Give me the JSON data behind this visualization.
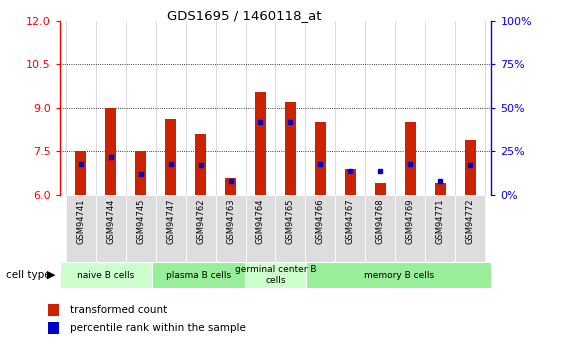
{
  "title": "GDS1695 / 1460118_at",
  "samples": [
    "GSM94741",
    "GSM94744",
    "GSM94745",
    "GSM94747",
    "GSM94762",
    "GSM94763",
    "GSM94764",
    "GSM94765",
    "GSM94766",
    "GSM94767",
    "GSM94768",
    "GSM94769",
    "GSM94771",
    "GSM94772"
  ],
  "transformed_count": [
    7.5,
    9.0,
    7.5,
    8.6,
    8.1,
    6.6,
    9.55,
    9.2,
    8.5,
    6.9,
    6.4,
    8.5,
    6.4,
    7.9
  ],
  "percentile_rank": [
    18,
    22,
    12,
    18,
    17,
    8,
    42,
    42,
    18,
    14,
    14,
    18,
    8,
    17
  ],
  "ymin": 6,
  "ymax": 12,
  "yticks": [
    6,
    7.5,
    9,
    10.5,
    12
  ],
  "right_yticks": [
    0,
    25,
    50,
    75,
    100
  ],
  "right_ylabels": [
    "0%",
    "25%",
    "50%",
    "75%",
    "100%"
  ],
  "cell_types": [
    {
      "label": "naive B cells",
      "start": 0,
      "end": 3,
      "color": "#ccffcc"
    },
    {
      "label": "plasma B cells",
      "start": 3,
      "end": 6,
      "color": "#99ee99"
    },
    {
      "label": "germinal center B\ncells",
      "start": 6,
      "end": 8,
      "color": "#ccffcc"
    },
    {
      "label": "memory B cells",
      "start": 8,
      "end": 14,
      "color": "#99ee99"
    }
  ],
  "bar_color": "#cc2200",
  "percentile_color": "#0000cc",
  "bar_width": 0.35,
  "grid_yticks": [
    7.5,
    9.0,
    10.5
  ]
}
